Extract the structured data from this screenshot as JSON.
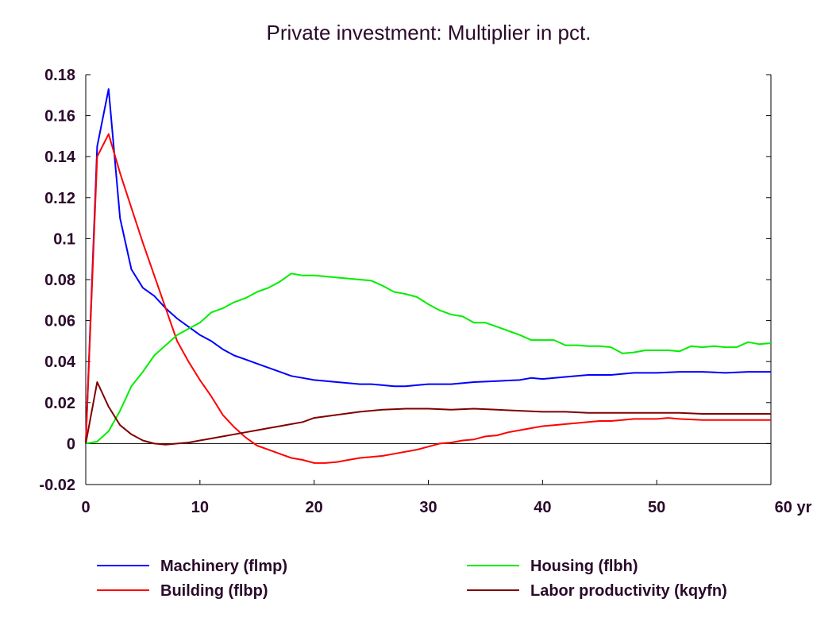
{
  "chart_data": {
    "type": "line",
    "title": "Private investment: Multiplier in pct.",
    "x_unit_label": "yr",
    "xlim": [
      0,
      60
    ],
    "ylim": [
      -0.02,
      0.18
    ],
    "x_ticks": [
      0,
      10,
      20,
      30,
      40,
      50,
      60
    ],
    "x_tick_labels": [
      "0",
      "10",
      "20",
      "30",
      "40",
      "50",
      "60 yr"
    ],
    "y_ticks": [
      -0.02,
      0,
      0.02,
      0.04,
      0.06,
      0.08,
      0.1,
      0.12,
      0.14,
      0.16,
      0.18
    ],
    "y_tick_labels": [
      "-0.02",
      "0",
      "0.02",
      "0.04",
      "0.06",
      "0.08",
      "0.1",
      "0.12",
      "0.14",
      "0.16",
      "0.18"
    ],
    "grid": false,
    "legend_position": "bottom",
    "series": [
      {
        "name": "Machinery (flmp)",
        "color": "#0000ff",
        "points": [
          [
            0,
            0
          ],
          [
            1,
            0.145
          ],
          [
            2,
            0.173
          ],
          [
            3,
            0.11
          ],
          [
            4,
            0.085
          ],
          [
            5,
            0.076
          ],
          [
            6,
            0.072
          ],
          [
            7,
            0.066
          ],
          [
            8,
            0.061
          ],
          [
            9,
            0.057
          ],
          [
            10,
            0.053
          ],
          [
            11,
            0.05
          ],
          [
            12,
            0.046
          ],
          [
            13,
            0.043
          ],
          [
            14,
            0.041
          ],
          [
            15,
            0.039
          ],
          [
            16,
            0.037
          ],
          [
            17,
            0.035
          ],
          [
            18,
            0.033
          ],
          [
            19,
            0.032
          ],
          [
            20,
            0.031
          ],
          [
            22,
            0.03
          ],
          [
            24,
            0.029
          ],
          [
            25,
            0.029
          ],
          [
            26,
            0.0285
          ],
          [
            27,
            0.028
          ],
          [
            28,
            0.028
          ],
          [
            29,
            0.0285
          ],
          [
            30,
            0.029
          ],
          [
            32,
            0.029
          ],
          [
            34,
            0.03
          ],
          [
            36,
            0.0305
          ],
          [
            38,
            0.031
          ],
          [
            39,
            0.032
          ],
          [
            40,
            0.0315
          ],
          [
            42,
            0.0325
          ],
          [
            44,
            0.0335
          ],
          [
            46,
            0.0335
          ],
          [
            48,
            0.0345
          ],
          [
            50,
            0.0345
          ],
          [
            52,
            0.035
          ],
          [
            54,
            0.035
          ],
          [
            56,
            0.0345
          ],
          [
            58,
            0.035
          ],
          [
            60,
            0.035
          ]
        ]
      },
      {
        "name": "Building (flbp)",
        "color": "#ff0000",
        "points": [
          [
            0,
            0
          ],
          [
            1,
            0.14
          ],
          [
            2,
            0.151
          ],
          [
            3,
            0.132
          ],
          [
            4,
            0.115
          ],
          [
            5,
            0.098
          ],
          [
            6,
            0.082
          ],
          [
            7,
            0.066
          ],
          [
            8,
            0.05
          ],
          [
            9,
            0.04
          ],
          [
            10,
            0.031
          ],
          [
            11,
            0.023
          ],
          [
            12,
            0.014
          ],
          [
            13,
            0.008
          ],
          [
            14,
            0.003
          ],
          [
            15,
            -0.001
          ],
          [
            16,
            -0.003
          ],
          [
            17,
            -0.005
          ],
          [
            18,
            -0.007
          ],
          [
            19,
            -0.008
          ],
          [
            20,
            -0.0095
          ],
          [
            21,
            -0.0095
          ],
          [
            22,
            -0.009
          ],
          [
            23,
            -0.008
          ],
          [
            24,
            -0.007
          ],
          [
            25,
            -0.0065
          ],
          [
            26,
            -0.006
          ],
          [
            27,
            -0.005
          ],
          [
            28,
            -0.004
          ],
          [
            29,
            -0.003
          ],
          [
            30,
            -0.0015
          ],
          [
            31,
            0
          ],
          [
            32,
            0.0005
          ],
          [
            33,
            0.0015
          ],
          [
            34,
            0.002
          ],
          [
            35,
            0.0035
          ],
          [
            36,
            0.004
          ],
          [
            37,
            0.0055
          ],
          [
            38,
            0.0065
          ],
          [
            39,
            0.0075
          ],
          [
            40,
            0.0085
          ],
          [
            41,
            0.009
          ],
          [
            42,
            0.0095
          ],
          [
            43,
            0.01
          ],
          [
            44,
            0.0105
          ],
          [
            45,
            0.011
          ],
          [
            46,
            0.011
          ],
          [
            47,
            0.0115
          ],
          [
            48,
            0.012
          ],
          [
            49,
            0.012
          ],
          [
            50,
            0.012
          ],
          [
            51,
            0.0125
          ],
          [
            52,
            0.012
          ],
          [
            54,
            0.0115
          ],
          [
            56,
            0.0115
          ],
          [
            58,
            0.0115
          ],
          [
            60,
            0.0115
          ]
        ]
      },
      {
        "name": "Housing (flbh)",
        "color": "#00ee00",
        "points": [
          [
            0,
            0
          ],
          [
            1,
            0.001
          ],
          [
            2,
            0.006
          ],
          [
            3,
            0.016
          ],
          [
            4,
            0.028
          ],
          [
            5,
            0.035
          ],
          [
            6,
            0.043
          ],
          [
            7,
            0.048
          ],
          [
            8,
            0.053
          ],
          [
            9,
            0.056
          ],
          [
            10,
            0.059
          ],
          [
            11,
            0.064
          ],
          [
            12,
            0.066
          ],
          [
            13,
            0.069
          ],
          [
            14,
            0.071
          ],
          [
            15,
            0.074
          ],
          [
            16,
            0.076
          ],
          [
            17,
            0.079
          ],
          [
            18,
            0.083
          ],
          [
            19,
            0.082
          ],
          [
            20,
            0.082
          ],
          [
            22,
            0.081
          ],
          [
            24,
            0.08
          ],
          [
            25,
            0.0795
          ],
          [
            26,
            0.077
          ],
          [
            27,
            0.074
          ],
          [
            28,
            0.073
          ],
          [
            29,
            0.0715
          ],
          [
            30,
            0.068
          ],
          [
            31,
            0.065
          ],
          [
            32,
            0.063
          ],
          [
            33,
            0.062
          ],
          [
            34,
            0.059
          ],
          [
            35,
            0.059
          ],
          [
            36,
            0.057
          ],
          [
            37,
            0.055
          ],
          [
            38,
            0.053
          ],
          [
            39,
            0.0505
          ],
          [
            40,
            0.0505
          ],
          [
            41,
            0.0505
          ],
          [
            42,
            0.048
          ],
          [
            43,
            0.048
          ],
          [
            44,
            0.0475
          ],
          [
            45,
            0.0475
          ],
          [
            46,
            0.047
          ],
          [
            47,
            0.044
          ],
          [
            48,
            0.0445
          ],
          [
            49,
            0.0455
          ],
          [
            50,
            0.0455
          ],
          [
            51,
            0.0455
          ],
          [
            52,
            0.045
          ],
          [
            53,
            0.0475
          ],
          [
            54,
            0.047
          ],
          [
            55,
            0.0475
          ],
          [
            56,
            0.047
          ],
          [
            57,
            0.047
          ],
          [
            58,
            0.0495
          ],
          [
            59,
            0.0485
          ],
          [
            60,
            0.049
          ]
        ]
      },
      {
        "name": "Labor productivity (kqyfn)",
        "color": "#800000",
        "points": [
          [
            0,
            0
          ],
          [
            1,
            0.03
          ],
          [
            2,
            0.018
          ],
          [
            3,
            0.009
          ],
          [
            4,
            0.0045
          ],
          [
            5,
            0.0015
          ],
          [
            6,
            0
          ],
          [
            7,
            -0.0005
          ],
          [
            8,
            0
          ],
          [
            9,
            0.0005
          ],
          [
            10,
            0.0015
          ],
          [
            11,
            0.0025
          ],
          [
            12,
            0.0035
          ],
          [
            13,
            0.0045
          ],
          [
            14,
            0.0055
          ],
          [
            15,
            0.0065
          ],
          [
            16,
            0.0075
          ],
          [
            17,
            0.0085
          ],
          [
            18,
            0.0095
          ],
          [
            19,
            0.0105
          ],
          [
            20,
            0.0125
          ],
          [
            22,
            0.014
          ],
          [
            24,
            0.0155
          ],
          [
            26,
            0.0165
          ],
          [
            28,
            0.017
          ],
          [
            30,
            0.017
          ],
          [
            32,
            0.0165
          ],
          [
            34,
            0.017
          ],
          [
            36,
            0.0165
          ],
          [
            38,
            0.016
          ],
          [
            40,
            0.0155
          ],
          [
            42,
            0.0155
          ],
          [
            44,
            0.015
          ],
          [
            46,
            0.015
          ],
          [
            48,
            0.015
          ],
          [
            50,
            0.015
          ],
          [
            52,
            0.015
          ],
          [
            54,
            0.0145
          ],
          [
            56,
            0.0145
          ],
          [
            58,
            0.0145
          ],
          [
            60,
            0.0145
          ]
        ]
      }
    ]
  }
}
